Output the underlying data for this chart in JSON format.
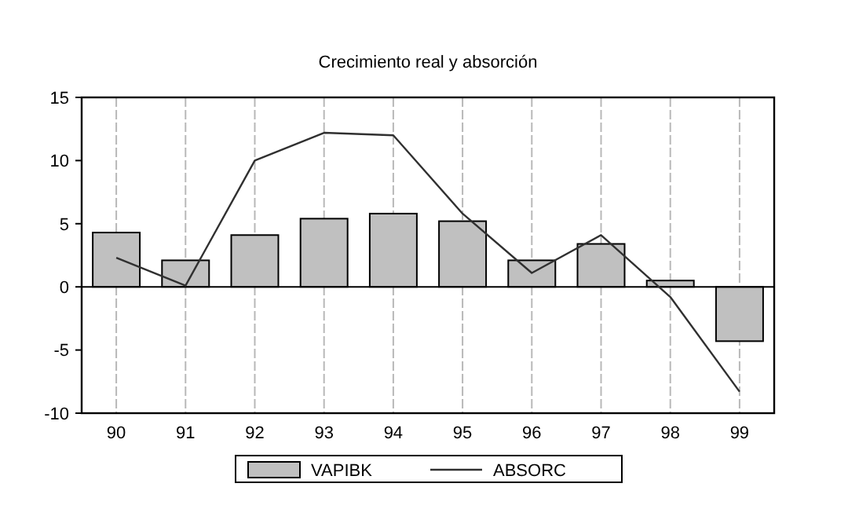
{
  "chart_data": {
    "type": "bar",
    "title": "Crecimiento real y absorción",
    "categories": [
      "90",
      "91",
      "92",
      "93",
      "94",
      "95",
      "96",
      "97",
      "98",
      "99"
    ],
    "series": [
      {
        "name": "VAPIBK",
        "color": "#c0c0c0",
        "values": [
          4.3,
          2.1,
          4.1,
          5.4,
          5.8,
          5.2,
          2.1,
          3.4,
          0.5,
          -4.3
        ]
      },
      {
        "name": "ABSORC",
        "type": "line",
        "color": "#303030",
        "values": [
          2.3,
          0.1,
          10.0,
          12.2,
          12.0,
          5.8,
          1.1,
          4.1,
          -0.8,
          -8.3
        ]
      }
    ],
    "ylim": [
      -10,
      15
    ],
    "yticks": [
      -10,
      -5,
      0,
      5,
      10,
      15
    ],
    "grid": "x",
    "legend": "bottom",
    "ref_lines": [
      {
        "axis": "y",
        "value": 0,
        "color": "#000000"
      }
    ]
  }
}
